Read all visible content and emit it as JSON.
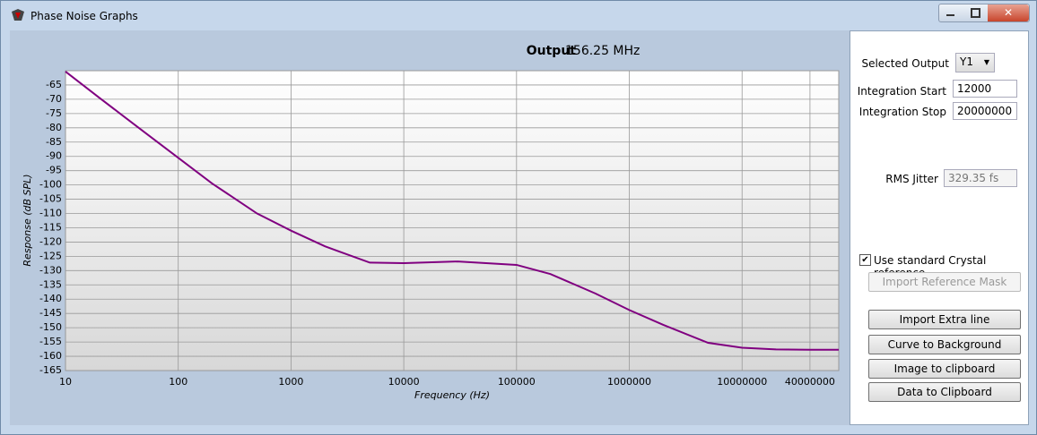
{
  "window": {
    "title": "Phase Noise Graphs"
  },
  "chart_data": {
    "type": "line",
    "title": "Output",
    "subtitle": "156.25 MHz",
    "x_label": "Frequency (Hz)",
    "y_label": "Response (dB SPL)",
    "x_scale": "log",
    "grid": true,
    "x": [
      10,
      20,
      50,
      100,
      200,
      500,
      1000,
      2000,
      5000,
      10000,
      30000,
      100000,
      200000,
      500000,
      1000000,
      2000000,
      5000000,
      10000000,
      20000000,
      40000000,
      72000000
    ],
    "series": [
      {
        "color": "#800080",
        "values": [
          -60.3,
          -69.5,
          -81.5,
          -90.5,
          -99.5,
          -110,
          -116,
          -121.5,
          -127.2,
          -127.4,
          -126.8,
          -128,
          -131.2,
          -138,
          -143.8,
          -149,
          -155.3,
          -157,
          -157.6,
          -157.7,
          -157.7
        ]
      }
    ],
    "xlim": [
      10,
      72000000
    ],
    "xticks": [
      10,
      100,
      1000,
      10000,
      100000,
      1000000,
      10000000,
      40000000
    ],
    "ylim": [
      -165,
      -60
    ],
    "yticks": [
      -165,
      -160,
      -155,
      -150,
      -145,
      -140,
      -135,
      -130,
      -125,
      -120,
      -115,
      -110,
      -105,
      -100,
      -95,
      -90,
      -85,
      -80,
      -75,
      -70,
      -65
    ]
  },
  "controls": {
    "selected_output_label": "Selected Output",
    "selected_output": "Y1",
    "integration_start_label": "Integration Start",
    "integration_start": "12000",
    "integration_stop_label": "Integration Stop",
    "integration_stop": "20000000",
    "rms_jitter_label": "RMS Jitter",
    "rms_jitter": "329.35 fs",
    "crystal_reference": "Use standard Crystal reference",
    "buttons": [
      "Import Reference Mask",
      "Import Extra line",
      "Curve to Background",
      "Image to clipboard",
      "Data to Clipboard"
    ]
  }
}
